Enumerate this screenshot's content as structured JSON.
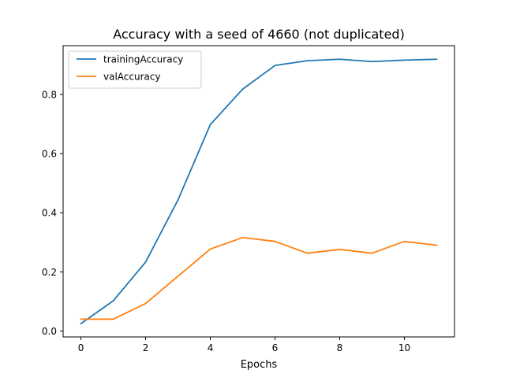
{
  "chart_data": {
    "type": "line",
    "title": "Accuracy with a seed of 4660 (not duplicated)",
    "xlabel": "Epochs",
    "ylabel": "",
    "x": [
      0,
      1,
      2,
      3,
      4,
      5,
      6,
      7,
      8,
      9,
      10,
      11
    ],
    "xlim": [
      -0.55,
      11.55
    ],
    "ylim": [
      -0.02,
      0.965
    ],
    "xticks": [
      0,
      2,
      4,
      6,
      8,
      10
    ],
    "xtick_labels": [
      "0",
      "2",
      "4",
      "6",
      "8",
      "10"
    ],
    "yticks": [
      0.0,
      0.2,
      0.4,
      0.6,
      0.8
    ],
    "ytick_labels": [
      "0.0",
      "0.2",
      "0.4",
      "0.6",
      "0.8"
    ],
    "grid": false,
    "legend_position": "top-left",
    "series": [
      {
        "name": "trainingAccuracy",
        "color": "#1f77b4",
        "values": [
          0.025,
          0.102,
          0.233,
          0.443,
          0.698,
          0.818,
          0.898,
          0.914,
          0.919,
          0.911,
          0.916,
          0.919
        ]
      },
      {
        "name": "valAccuracy",
        "color": "#ff7f0e",
        "values": [
          0.04,
          0.04,
          0.093,
          0.185,
          0.277,
          0.316,
          0.303,
          0.263,
          0.276,
          0.263,
          0.303,
          0.29
        ]
      }
    ]
  }
}
